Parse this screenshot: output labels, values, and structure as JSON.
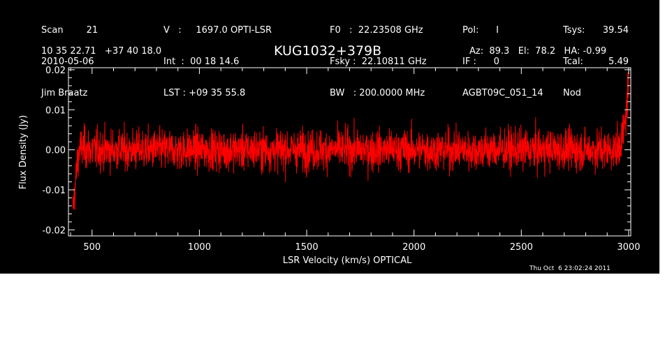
{
  "header": {
    "col1": [
      "Scan        21",
      "2010-05-06",
      "Jim Braatz"
    ],
    "col2": [
      "V   :     1697.0 OPTI-LSR",
      "Int  :  00 18 14.6",
      "LST : +09 35 55.8"
    ],
    "col3": [
      "F0   :  22.23508 GHz",
      "Fsky :  22.10811 GHz",
      "BW   : 200.0000 MHz"
    ],
    "col4": [
      "Pol:      I",
      "IF :      0",
      "AGBT09C_051_14"
    ],
    "col5": [
      "Tsys:",
      "Tcal:",
      "Nod"
    ],
    "col6": [
      "39.54",
      "5.49",
      ""
    ],
    "coords": "10 35 22.71   +37 40 18.0",
    "source": "KUG1032+379B",
    "az_el_ha": "Az:  89.3   El:  78.2   HA: -0.99",
    "timestamp": "Thu Oct  6 23:02:24 2011"
  },
  "colors": {
    "background": "#000000",
    "series": "#ff0000",
    "axes": "#ffffff"
  },
  "chart_data": {
    "type": "line",
    "title": "KUG1032+379B",
    "xlabel": "LSR Velocity (km/s) OPTICAL",
    "ylabel": "Flux Density (Jy)",
    "xlim": [
      390,
      3010
    ],
    "ylim": [
      -0.0215,
      0.0205
    ],
    "xticks": [
      500,
      1000,
      1500,
      2000,
      2500,
      3000
    ],
    "xtick_labels": [
      "500",
      "1000",
      "1500",
      "2000",
      "2500",
      "3000"
    ],
    "yticks": [
      -0.02,
      -0.01,
      0.0,
      0.01,
      0.02
    ],
    "ytick_labels": [
      "-0.02",
      "-0.01",
      "0.00",
      "0.01",
      "0.02"
    ],
    "grid": false,
    "series": [
      {
        "x": [
          410,
          420,
          430,
          440,
          460,
          500,
          600,
          750,
          900,
          1100,
          1300,
          1500,
          1700,
          1900,
          2100,
          2300,
          2500,
          2700,
          2850,
          2950,
          2980,
          2990,
          2995,
          3000
        ],
        "y": [
          -0.015,
          -0.01,
          -0.004,
          0.0,
          0.0005,
          0.0,
          0.0,
          0.0,
          0.0,
          0.0,
          0.0,
          0.0,
          0.0,
          0.0,
          0.0,
          0.0,
          0.0,
          0.0,
          0.0,
          0.0,
          0.005,
          0.01,
          0.014,
          0.016
        ]
      }
    ]
  }
}
